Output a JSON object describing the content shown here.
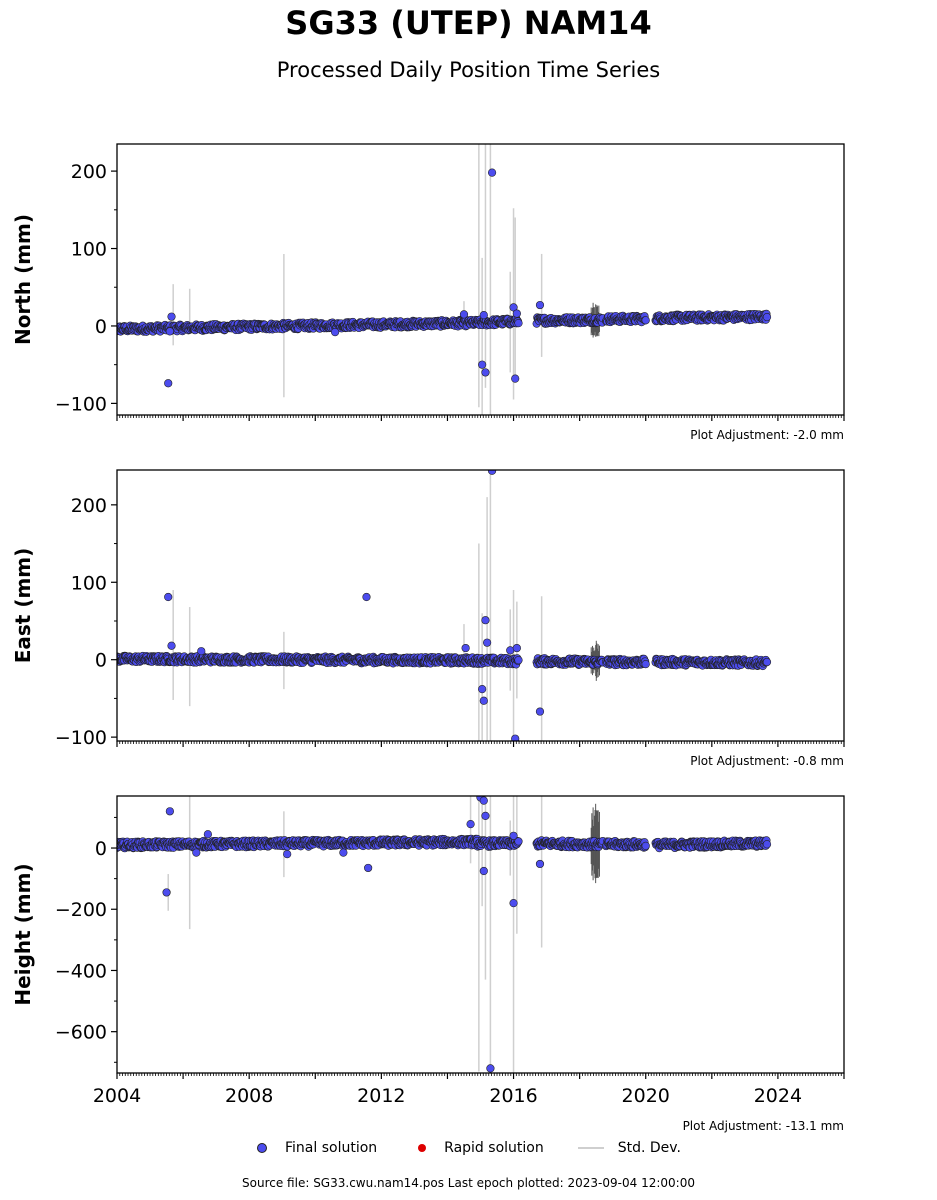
{
  "title": "SG33 (UTEP) NAM14",
  "subtitle": "Processed Daily Position Time Series",
  "footer": "Source file: SG33.cwu.nam14.pos  Last epoch plotted: 2023-09-04 12:00:00",
  "legend": {
    "final": "Final solution",
    "rapid": "Rapid solution",
    "std": "Std. Dev."
  },
  "colors": {
    "final": "#4c4cee",
    "rapid": "#dd0000",
    "std": "#cfcfcf",
    "dense_std": "#555555"
  },
  "chart_data": [
    {
      "type": "scatter",
      "ylabel": "North (mm)",
      "adjustment": "Plot Adjustment: -2.0 mm",
      "xlim": [
        2004,
        2026
      ],
      "ylim": [
        -115,
        235
      ],
      "yticks": [
        -100,
        0,
        100,
        200
      ],
      "segments": [
        {
          "x0": 2004.0,
          "x1": 2014.9,
          "y0": -4,
          "y1": 4
        },
        {
          "x0": 2014.9,
          "x1": 2016.15,
          "y0": 4,
          "y1": 6
        },
        {
          "x0": 2016.7,
          "x1": 2018.7,
          "y0": 7,
          "y1": 8
        },
        {
          "x0": 2018.8,
          "x1": 2020.0,
          "y0": 9,
          "y1": 9
        },
        {
          "x0": 2020.3,
          "x1": 2023.67,
          "y0": 10,
          "y1": 12
        }
      ],
      "outliers": [
        {
          "x": 2005.55,
          "y": -74
        },
        {
          "x": 2005.65,
          "y": 12
        },
        {
          "x": 2005.6,
          "y": -7
        },
        {
          "x": 2010.6,
          "y": -8
        },
        {
          "x": 2014.5,
          "y": 15
        },
        {
          "x": 2015.05,
          "y": -50
        },
        {
          "x": 2015.15,
          "y": -60
        },
        {
          "x": 2015.35,
          "y": 198
        },
        {
          "x": 2015.1,
          "y": 14
        },
        {
          "x": 2016.0,
          "y": 24
        },
        {
          "x": 2016.05,
          "y": -68
        },
        {
          "x": 2016.1,
          "y": 16
        },
        {
          "x": 2016.8,
          "y": 27
        }
      ],
      "std_bars": [
        {
          "x": 2005.7,
          "lo": -25,
          "hi": 54
        },
        {
          "x": 2006.2,
          "lo": -10,
          "hi": 48
        },
        {
          "x": 2009.05,
          "lo": -92,
          "hi": 93
        },
        {
          "x": 2014.5,
          "lo": -5,
          "hi": 32
        },
        {
          "x": 2014.95,
          "lo": -105,
          "hi": 235
        },
        {
          "x": 2015.05,
          "lo": -115,
          "hi": 88
        },
        {
          "x": 2015.15,
          "lo": -80,
          "hi": 235
        },
        {
          "x": 2015.3,
          "lo": -115,
          "hi": 235
        },
        {
          "x": 2015.9,
          "lo": -60,
          "hi": 70
        },
        {
          "x": 2016.0,
          "lo": -95,
          "hi": 152
        },
        {
          "x": 2016.05,
          "lo": -70,
          "hi": 140
        },
        {
          "x": 2016.85,
          "lo": -40,
          "hi": 93
        }
      ],
      "dense_band": {
        "x0": 2018.35,
        "x1": 2018.6,
        "lo": -15,
        "hi": 30
      }
    },
    {
      "type": "scatter",
      "ylabel": "East (mm)",
      "adjustment": "Plot Adjustment: -0.8 mm",
      "xlim": [
        2004,
        2026
      ],
      "ylim": [
        -105,
        245
      ],
      "yticks": [
        -100,
        0,
        100,
        200
      ],
      "segments": [
        {
          "x0": 2004.0,
          "x1": 2014.9,
          "y0": 1,
          "y1": -1
        },
        {
          "x0": 2014.9,
          "x1": 2016.15,
          "y0": -1,
          "y1": -2
        },
        {
          "x0": 2016.7,
          "x1": 2018.7,
          "y0": -2,
          "y1": -3
        },
        {
          "x0": 2018.8,
          "x1": 2020.0,
          "y0": -3,
          "y1": -3
        },
        {
          "x0": 2020.3,
          "x1": 2023.67,
          "y0": -3,
          "y1": -4
        }
      ],
      "outliers": [
        {
          "x": 2005.55,
          "y": 81
        },
        {
          "x": 2005.65,
          "y": 18
        },
        {
          "x": 2006.55,
          "y": 11
        },
        {
          "x": 2011.55,
          "y": 81
        },
        {
          "x": 2014.55,
          "y": 15
        },
        {
          "x": 2015.05,
          "y": -38
        },
        {
          "x": 2015.1,
          "y": -53
        },
        {
          "x": 2015.15,
          "y": 51
        },
        {
          "x": 2015.2,
          "y": 22
        },
        {
          "x": 2015.35,
          "y": 244
        },
        {
          "x": 2015.9,
          "y": 12
        },
        {
          "x": 2016.05,
          "y": -102
        },
        {
          "x": 2016.1,
          "y": 15
        },
        {
          "x": 2016.8,
          "y": -67
        }
      ],
      "std_bars": [
        {
          "x": 2005.7,
          "lo": -52,
          "hi": 90
        },
        {
          "x": 2006.2,
          "lo": -60,
          "hi": 68
        },
        {
          "x": 2009.05,
          "lo": -38,
          "hi": 36
        },
        {
          "x": 2014.5,
          "lo": -10,
          "hi": 46
        },
        {
          "x": 2014.95,
          "lo": -105,
          "hi": 150
        },
        {
          "x": 2015.05,
          "lo": -105,
          "hi": 60
        },
        {
          "x": 2015.2,
          "lo": -105,
          "hi": 210
        },
        {
          "x": 2015.3,
          "lo": -105,
          "hi": 245
        },
        {
          "x": 2015.9,
          "lo": -40,
          "hi": 65
        },
        {
          "x": 2016.0,
          "lo": -105,
          "hi": 90
        },
        {
          "x": 2016.1,
          "lo": -50,
          "hi": 75
        },
        {
          "x": 2016.85,
          "lo": -105,
          "hi": 82
        }
      ],
      "dense_band": {
        "x0": 2018.35,
        "x1": 2018.6,
        "lo": -28,
        "hi": 25
      }
    },
    {
      "type": "scatter",
      "ylabel": "Height (mm)",
      "adjustment": "Plot Adjustment: -13.1 mm",
      "xlim": [
        2004,
        2026
      ],
      "ylim": [
        -735,
        170
      ],
      "yticks": [
        -600,
        -400,
        -200,
        0
      ],
      "xticks": [
        2004,
        2008,
        2012,
        2016,
        2020,
        2024
      ],
      "segments": [
        {
          "x0": 2004.0,
          "x1": 2014.9,
          "y0": 10,
          "y1": 20
        },
        {
          "x0": 2014.9,
          "x1": 2016.15,
          "y0": 15,
          "y1": 15
        },
        {
          "x0": 2016.7,
          "x1": 2018.7,
          "y0": 15,
          "y1": 12
        },
        {
          "x0": 2018.8,
          "x1": 2020.0,
          "y0": 12,
          "y1": 12
        },
        {
          "x0": 2020.3,
          "x1": 2023.67,
          "y0": 10,
          "y1": 15
        }
      ],
      "outliers": [
        {
          "x": 2005.5,
          "y": -145
        },
        {
          "x": 2005.6,
          "y": 120
        },
        {
          "x": 2006.4,
          "y": -15
        },
        {
          "x": 2006.75,
          "y": 45
        },
        {
          "x": 2009.15,
          "y": -20
        },
        {
          "x": 2010.85,
          "y": -15
        },
        {
          "x": 2011.6,
          "y": -65
        },
        {
          "x": 2014.7,
          "y": 78
        },
        {
          "x": 2015.0,
          "y": 165
        },
        {
          "x": 2015.1,
          "y": 155
        },
        {
          "x": 2015.15,
          "y": 105
        },
        {
          "x": 2015.1,
          "y": -75
        },
        {
          "x": 2015.3,
          "y": -720
        },
        {
          "x": 2016.0,
          "y": -180
        },
        {
          "x": 2016.0,
          "y": 40
        },
        {
          "x": 2016.8,
          "y": -52
        }
      ],
      "std_bars": [
        {
          "x": 2005.55,
          "lo": -205,
          "hi": -85
        },
        {
          "x": 2006.2,
          "lo": -265,
          "hi": 170
        },
        {
          "x": 2009.05,
          "lo": -95,
          "hi": 120
        },
        {
          "x": 2014.7,
          "lo": -50,
          "hi": 170
        },
        {
          "x": 2014.95,
          "lo": -730,
          "hi": 170
        },
        {
          "x": 2015.05,
          "lo": -190,
          "hi": 170
        },
        {
          "x": 2015.15,
          "lo": -430,
          "hi": 170
        },
        {
          "x": 2015.3,
          "lo": -735,
          "hi": 170
        },
        {
          "x": 2015.9,
          "lo": -90,
          "hi": 90
        },
        {
          "x": 2016.0,
          "lo": -735,
          "hi": 170
        },
        {
          "x": 2016.1,
          "lo": -280,
          "hi": 170
        },
        {
          "x": 2016.85,
          "lo": -325,
          "hi": 170
        }
      ],
      "dense_band": {
        "x0": 2018.35,
        "x1": 2018.6,
        "lo": -115,
        "hi": 145
      }
    }
  ]
}
